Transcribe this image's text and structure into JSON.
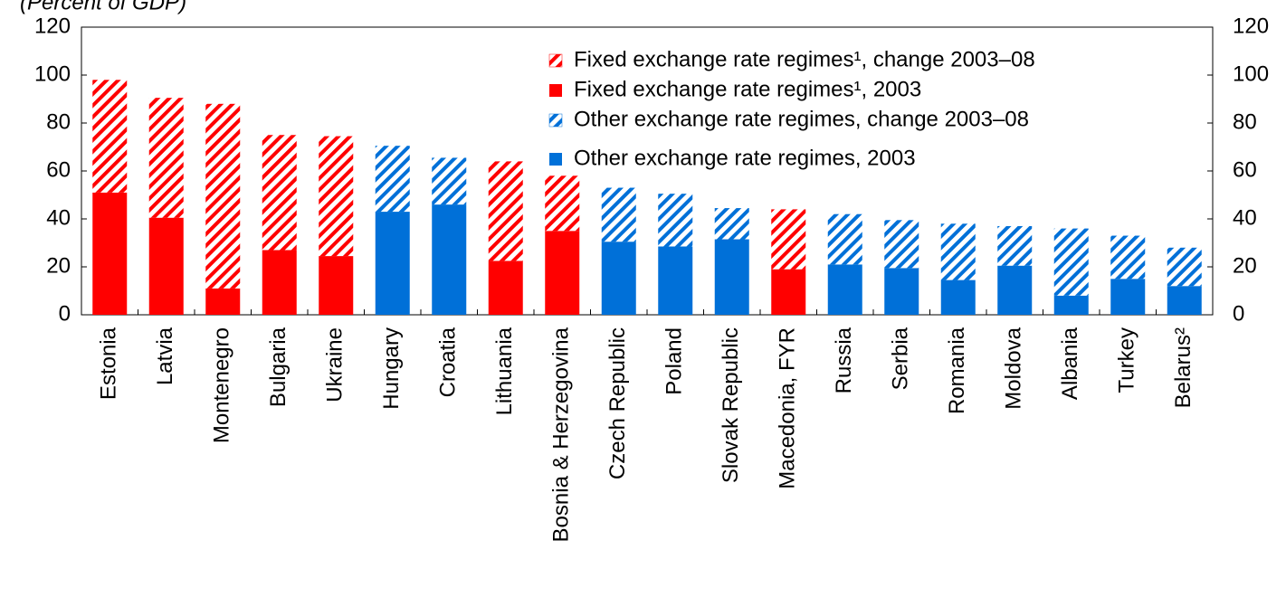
{
  "chart_data": {
    "type": "stacked_bar",
    "subtitle": "(Percent of GDP)",
    "categories": [
      "Estonia",
      "Latvia",
      "Montenegro",
      "Bulgaria",
      "Ukraine",
      "Hungary",
      "Croatia",
      "Lithuania",
      "Bosnia & Herzegovina",
      "Czech Republic",
      "Poland",
      "Slovak Republic",
      "Macedonia, FYR",
      "Russia",
      "Serbia",
      "Romania",
      "Moldova",
      "Albania",
      "Turkey",
      "Belarus²"
    ],
    "series": [
      {
        "name": "Fixed exchange rate regimes¹, change 2003–08",
        "color": "#ff0000",
        "hatch": true,
        "values": [
          47,
          50,
          77,
          48,
          50,
          null,
          null,
          41.5,
          23,
          null,
          null,
          null,
          25,
          null,
          null,
          null,
          null,
          null,
          null,
          null
        ]
      },
      {
        "name": "Fixed exchange rate regimes¹, 2003",
        "color": "#ff0000",
        "hatch": false,
        "values": [
          51,
          40.5,
          11,
          27,
          24.5,
          null,
          null,
          22.5,
          35,
          null,
          null,
          null,
          19,
          null,
          null,
          null,
          null,
          null,
          null,
          null
        ]
      },
      {
        "name": "Other exchange rate regimes, change 2003–08",
        "color": "#0070d8",
        "hatch": true,
        "values": [
          null,
          null,
          null,
          null,
          null,
          27.5,
          19.5,
          null,
          null,
          22.5,
          22,
          13,
          null,
          21,
          20,
          23.5,
          16.5,
          28,
          18,
          16
        ]
      },
      {
        "name": "Other exchange rate regimes, 2003",
        "color": "#0070d8",
        "hatch": false,
        "values": [
          null,
          null,
          null,
          null,
          null,
          43,
          46,
          null,
          null,
          30.5,
          28.5,
          31.5,
          null,
          21,
          19.5,
          14.5,
          20.5,
          8,
          15,
          12
        ]
      }
    ],
    "ylim": [
      0,
      120
    ],
    "yticks": [
      0,
      20,
      40,
      60,
      80,
      100,
      120
    ]
  }
}
